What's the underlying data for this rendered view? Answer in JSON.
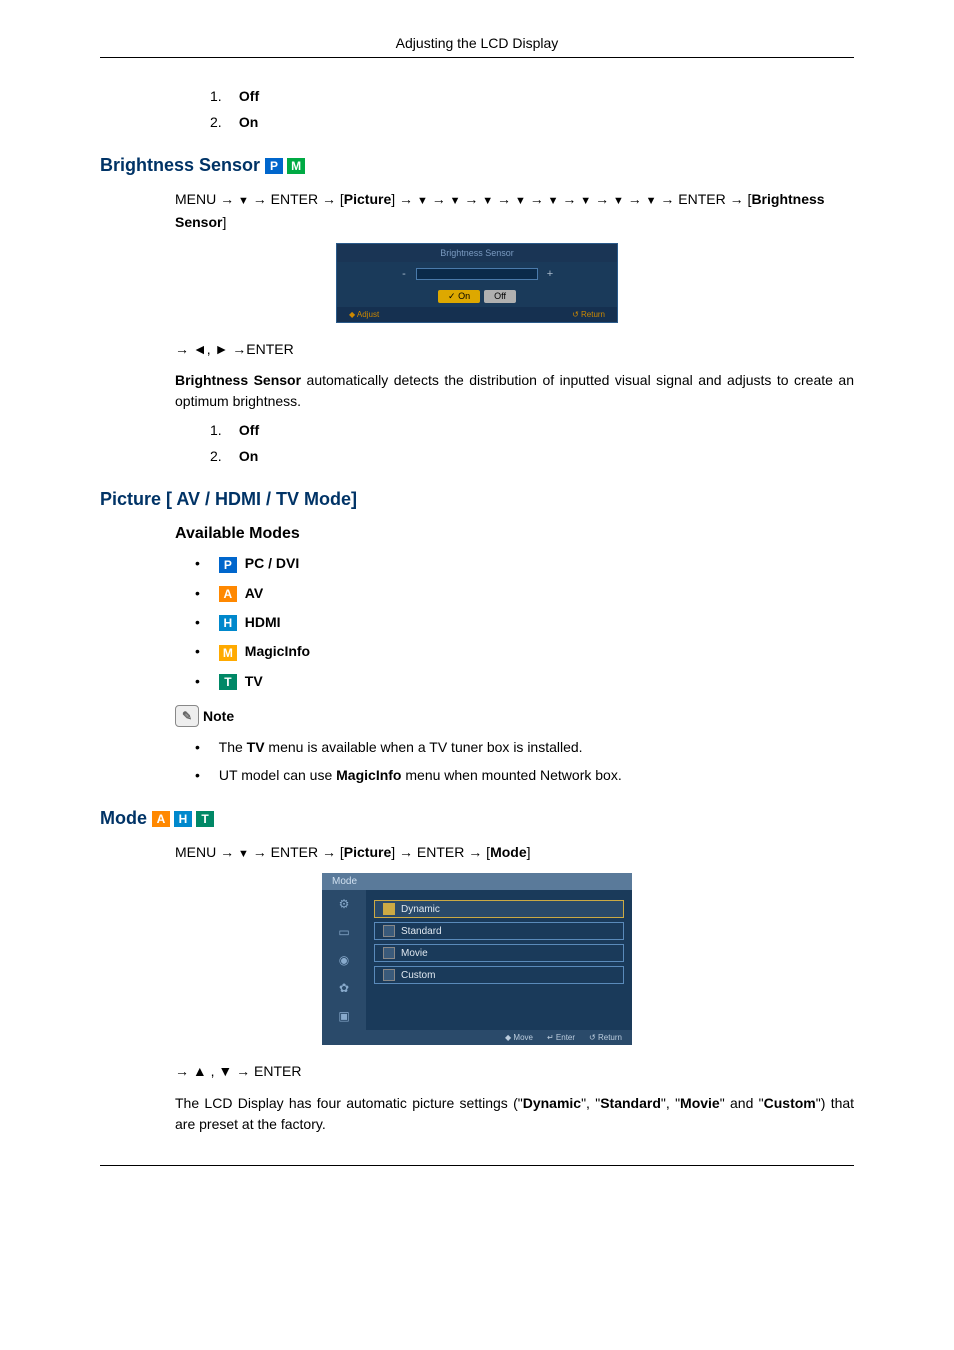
{
  "header": {
    "title": "Adjusting the LCD Display"
  },
  "list1": {
    "items": [
      {
        "num": "1.",
        "label": "Off"
      },
      {
        "num": "2.",
        "label": "On"
      }
    ]
  },
  "brightness_sensor": {
    "heading": "Brightness Sensor",
    "badges": [
      {
        "letter": "P",
        "bg": "#0066cc"
      },
      {
        "letter": "M",
        "bg": "#00aa44"
      }
    ],
    "nav_prefix": "MENU → ",
    "nav_enter1": " → ENTER → [",
    "nav_picture": "Picture",
    "nav_mid": "] → ",
    "nav_enter2": " → ENTER → [",
    "nav_label": "Brightness Sensor",
    "nav_end": "]",
    "osd": {
      "title": "Brightness Sensor",
      "minus": "-",
      "plus": "+",
      "on_btn": "✓ On",
      "off_btn": "Off",
      "footer_left": "◆ Adjust",
      "footer_right": "↺ Return"
    },
    "nav2": "→ ◄, ► →ENTER",
    "desc_bold": "Brightness Sensor",
    "desc_rest": " automatically detects the distribution of inputted visual signal and adjusts to create an optimum brightness.",
    "list": {
      "items": [
        {
          "num": "1.",
          "label": "Off"
        },
        {
          "num": "2.",
          "label": "On"
        }
      ]
    }
  },
  "picture_section": {
    "heading": "Picture [ AV / HDMI / TV Mode]",
    "sub": "Available Modes",
    "modes": [
      {
        "badge": "P",
        "bg": "#0066cc",
        "label": "PC / DVI"
      },
      {
        "badge": "A",
        "bg": "#ff8800",
        "label": "AV"
      },
      {
        "badge": "H",
        "bg": "#0088cc",
        "label": "HDMI"
      },
      {
        "badge": "M",
        "bg": "#ffaa00",
        "label": "MagicInfo"
      },
      {
        "badge": "T",
        "bg": "#008866",
        "label": "TV"
      }
    ],
    "note_label": "Note",
    "notes": [
      {
        "pre": "The ",
        "bold": "TV",
        "post": " menu is available when a TV tuner box is installed."
      },
      {
        "pre": "UT model can use ",
        "bold": "MagicInfo",
        "post": " menu when mounted Network box."
      }
    ]
  },
  "mode_section": {
    "heading": "Mode",
    "badges": [
      {
        "letter": "A",
        "bg": "#ff8800"
      },
      {
        "letter": "H",
        "bg": "#0088cc"
      },
      {
        "letter": "T",
        "bg": "#008866"
      }
    ],
    "nav": {
      "p1": "MENU → ",
      "p2": " → ENTER → [",
      "picture": "Picture",
      "p3": "] → ENTER → [",
      "mode": "Mode",
      "p4": "]"
    },
    "osd": {
      "title": "Mode",
      "side_icons": [
        "⚙",
        "▭",
        "◉",
        "✿",
        "▣"
      ],
      "options": [
        {
          "label": "Dynamic",
          "selected": true
        },
        {
          "label": "Standard",
          "selected": false
        },
        {
          "label": "Movie",
          "selected": false
        },
        {
          "label": "Custom",
          "selected": false
        }
      ],
      "footer": [
        {
          "sym": "◆",
          "txt": "Move"
        },
        {
          "sym": "↵",
          "txt": "Enter"
        },
        {
          "sym": "↺",
          "txt": "Return"
        }
      ]
    },
    "nav2": "→ ▲ , ▼ → ENTER",
    "desc": {
      "p1": "The LCD Display has four automatic picture settings (\"",
      "b1": "Dynamic",
      "p2": "\", \"",
      "b2": "Standard",
      "p3": "\", \"",
      "b3": "Movie",
      "p4": "\" and \"",
      "b4": "Custom",
      "p5": "\") that are preset at the factory."
    }
  }
}
